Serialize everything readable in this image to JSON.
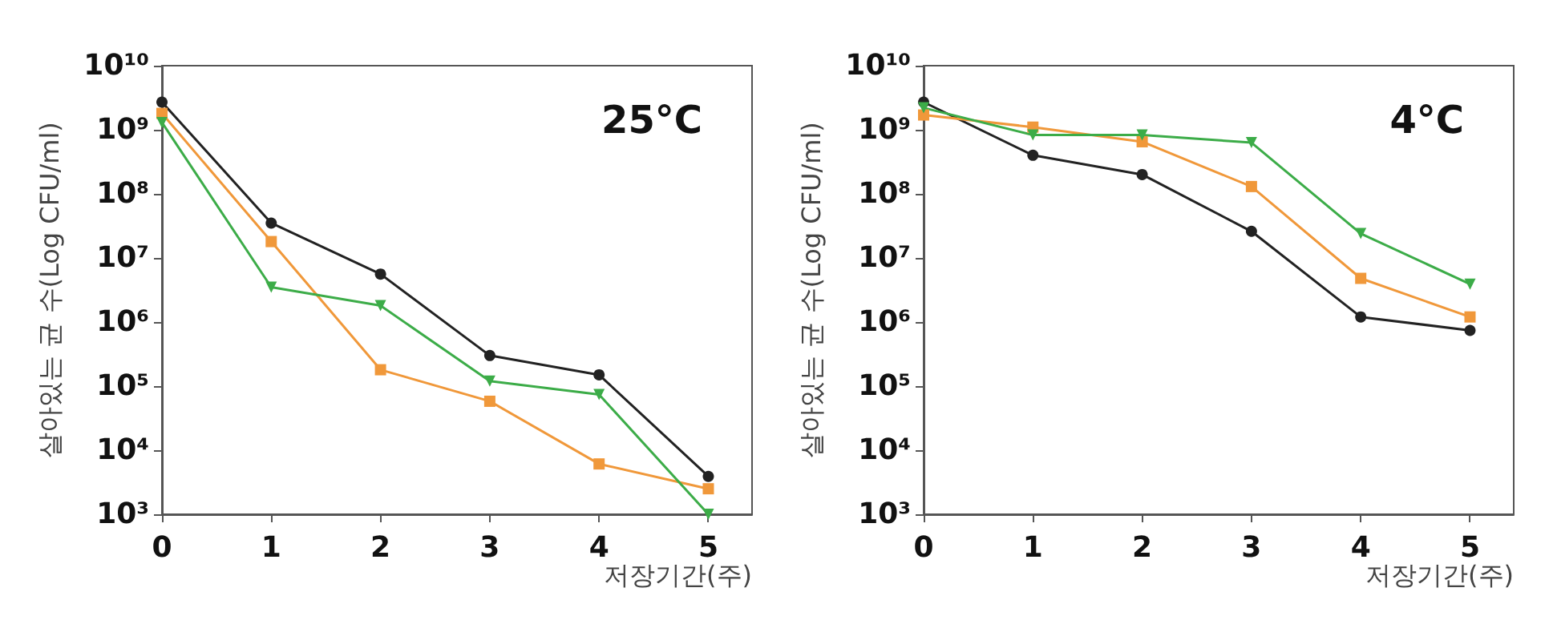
{
  "chart_data": [
    {
      "type": "line",
      "title": "25°C",
      "xlabel": "저장기간(주)",
      "ylabel": "살아있는 균 수(Log CFU/ml)",
      "log": "y",
      "grid": false,
      "x": [
        0,
        1,
        2,
        3,
        4,
        5
      ],
      "xlim": [
        0,
        5.4
      ],
      "xticks": [
        0,
        1,
        2,
        3,
        4,
        5
      ],
      "ylim": [
        1000,
        10000000000
      ],
      "yticks": [
        {
          "value": 1000,
          "label": "10³"
        },
        {
          "value": 10000,
          "label": "10⁴"
        },
        {
          "value": 100000,
          "label": "10⁵"
        },
        {
          "value": 1000000,
          "label": "10⁶"
        },
        {
          "value": 10000000,
          "label": "10⁷"
        },
        {
          "value": 100000000,
          "label": "10⁸"
        },
        {
          "value": 1000000000,
          "label": "10⁹"
        },
        {
          "value": 10000000000,
          "label": "10¹⁰"
        }
      ],
      "series": [
        {
          "color": "#222222",
          "marker": "circle",
          "values": [
            2700000000,
            35000000,
            5600000,
            300000,
            150000,
            3900
          ]
        },
        {
          "color": "#f0983a",
          "marker": "square",
          "values": [
            1800000000,
            18000000,
            180000,
            58000,
            6100,
            2500
          ]
        },
        {
          "color": "#3cac48",
          "marker": "triangle",
          "values": [
            1300000000,
            3500000,
            1800000,
            120000,
            74000,
            1000
          ]
        }
      ]
    },
    {
      "type": "line",
      "title": "4°C",
      "xlabel": "저장기간(주)",
      "ylabel": "살아있는 균 수(Log CFU/ml)",
      "log": "y",
      "grid": false,
      "x": [
        0,
        1,
        2,
        3,
        4,
        5
      ],
      "xlim": [
        0,
        5.4
      ],
      "xticks": [
        0,
        1,
        2,
        3,
        4,
        5
      ],
      "ylim": [
        1000,
        10000000000
      ],
      "yticks": [
        {
          "value": 1000,
          "label": "10³"
        },
        {
          "value": 10000,
          "label": "10⁴"
        },
        {
          "value": 100000,
          "label": "10⁵"
        },
        {
          "value": 1000000,
          "label": "10⁶"
        },
        {
          "value": 10000000,
          "label": "10⁷"
        },
        {
          "value": 100000000,
          "label": "10⁸"
        },
        {
          "value": 1000000000,
          "label": "10⁹"
        },
        {
          "value": 10000000000,
          "label": "10¹⁰"
        }
      ],
      "series": [
        {
          "color": "#222222",
          "marker": "circle",
          "values": [
            2700000000,
            400000000,
            200000000,
            26000000,
            1200000,
            740000
          ]
        },
        {
          "color": "#f0983a",
          "marker": "square",
          "values": [
            1700000000,
            1100000000,
            650000000,
            130000000,
            4800000,
            1200000
          ]
        },
        {
          "color": "#3cac48",
          "marker": "triangle",
          "values": [
            2200000000,
            830000000,
            830000000,
            630000000,
            24000000,
            3900000
          ]
        }
      ]
    }
  ]
}
